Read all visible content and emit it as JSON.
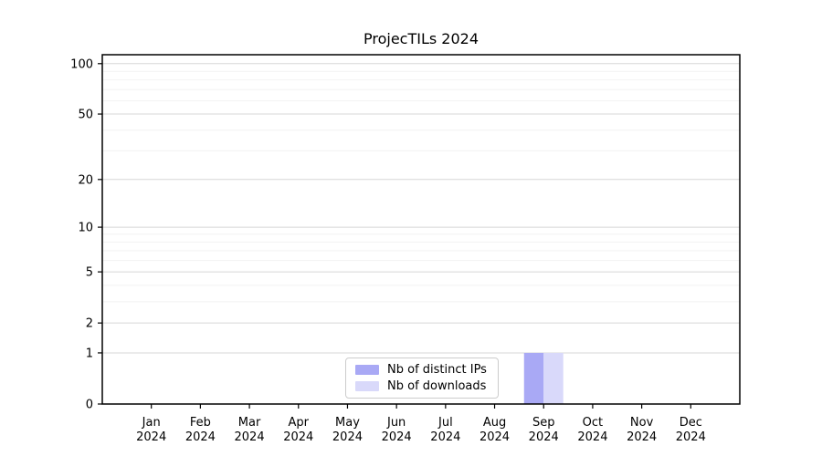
{
  "figure": {
    "background": "#ffffff"
  },
  "chart_data": {
    "type": "bar",
    "title": "ProjecTILs 2024",
    "categories": [
      "Jan",
      "Feb",
      "Mar",
      "Apr",
      "May",
      "Jun",
      "Jul",
      "Aug",
      "Sep",
      "Oct",
      "Nov",
      "Dec"
    ],
    "year_label": "2024",
    "series": [
      {
        "name": "Nb of distinct IPs",
        "color": "#a9a9f5",
        "values": [
          0,
          0,
          0,
          0,
          0,
          0,
          0,
          0,
          1,
          0,
          0,
          0
        ]
      },
      {
        "name": "Nb of downloads",
        "color": "#d9d9fa",
        "values": [
          0,
          0,
          0,
          0,
          0,
          0,
          0,
          0,
          1,
          0,
          0,
          0
        ]
      }
    ],
    "yscale": "log1p",
    "ylim": [
      0,
      113
    ],
    "yticks": [
      0,
      1,
      2,
      5,
      10,
      20,
      50,
      100
    ],
    "minor_yticks": [
      3,
      4,
      6,
      7,
      8,
      9,
      30,
      40,
      60,
      70,
      80,
      90
    ],
    "bar_width_fraction": 0.4,
    "grid": "horizontal",
    "legend_position": "lower center",
    "colors": {
      "major_grid": "#d7d7d7",
      "minor_grid": "#f2f2f2",
      "axis": "#000000",
      "tick_label": "#000000",
      "background": "#ffffff"
    }
  }
}
